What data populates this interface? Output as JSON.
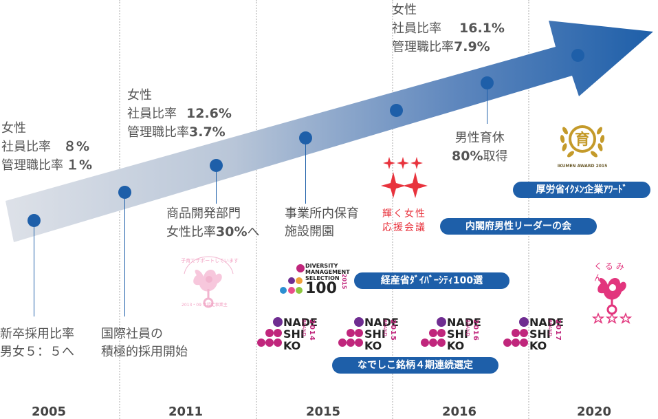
{
  "years": [
    "2005",
    "2011",
    "2015",
    "2016",
    "2020"
  ],
  "milestones": {
    "y2005_top": {
      "line1": "女性",
      "line2_label": "社員比率",
      "line2_value": "８%",
      "line3_label": "管理職比率",
      "line3_value": "１%"
    },
    "y2005_bottom": {
      "line1": "新卒採用比率",
      "line2": "男女５：５へ"
    },
    "y2011_top": {
      "line1": "女性",
      "line2_label": "社員比率",
      "line2_value": "12.6%",
      "line3_label": "管理職比率",
      "line3_value": "3.7%"
    },
    "y2011_bottom": {
      "line1": "国際社員の",
      "line2": "積極的採用開始"
    },
    "y2011_mid": {
      "line1": "商品開発部門",
      "line2_label": "女性比率",
      "line2_value": "30%",
      "line2_suffix": "へ"
    },
    "y2015_mid": {
      "line1": "事業所内保育",
      "line2": "施設開園"
    },
    "y2016_top": {
      "line1": "女性",
      "line2_label": "社員比率",
      "line2_value": "16.1%",
      "line3_label": "管理職比率",
      "line3_value": "7.9%"
    },
    "y2016_mid": {
      "line1": "男性育休",
      "line2_value": "80%",
      "line2_suffix": "取得"
    }
  },
  "badges": {
    "ikumen": "厚労省ｲｸﾒﾝ企業ｱﾜｰﾄﾞ",
    "leaders": "内閣府男性リーダーの会",
    "diversity": "経産省ﾀﾞｲﾊﾞｰｼﾃｨ100選",
    "nadeshiko": "なでしこ銘柄４期連続選定"
  },
  "logos": {
    "kagayaku_line1": "輝く女性",
    "kagayaku_line2": "応援会議",
    "ikumen_award": "IKUMEN AWARD 2015",
    "kurumin_text": "くるみん",
    "kurumin_arc": "子育てサポートしています",
    "kurumin_sub": "2013・09 年認定事業主",
    "diversity_l1": "DIVERSITY",
    "diversity_l2": "MANAGEMENT",
    "diversity_l3": "SELECTION",
    "diversity_num": "100",
    "diversity_year": "2015",
    "nade_l1": "NADE",
    "nade_l2": "SHI",
    "nade_l3": "KO",
    "nade_brand": "BRAND",
    "nade_years": [
      "2014",
      "2015",
      "2016",
      "2017"
    ]
  },
  "colors": {
    "arrow_dark": "#1e5fa9",
    "arrow_light": "#d6dbe3",
    "dot": "#1e5fa9",
    "pill": "#1e5fa9",
    "pink": "#c0267c",
    "red": "#e8333d"
  }
}
